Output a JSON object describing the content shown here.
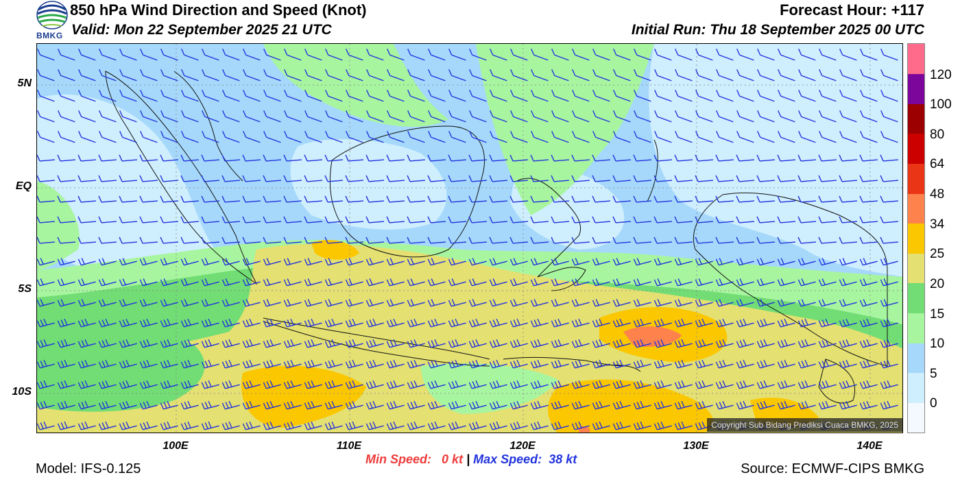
{
  "header": {
    "title": "850 hPa Wind Direction and Speed (Knot)",
    "valid": "Valid: Mon 22 September 2025 21 UTC",
    "forecast_hour": "Forecast Hour: +117",
    "initial_run": "Initial Run: Thu 18 September 2025 00 UTC"
  },
  "logo": {
    "text": "BMKG",
    "icon": "bmkg-logo-icon"
  },
  "axes": {
    "lat_labels": [
      "5N",
      "EQ",
      "5S",
      "10S"
    ],
    "lon_labels": [
      "100E",
      "110E",
      "120E",
      "130E",
      "140E"
    ]
  },
  "colorbar": {
    "labels": [
      "0",
      "5",
      "10",
      "15",
      "20",
      "25",
      "34",
      "48",
      "64",
      "80",
      "100",
      "120"
    ],
    "colors": [
      "#f4f9ff",
      "#cfeefe",
      "#a5d8fb",
      "#a8f5a0",
      "#71dd74",
      "#e4e072",
      "#fbc701",
      "#fd824c",
      "#ea3517",
      "#cd0000",
      "#9c0000",
      "#7c069c",
      "#fe6b8b"
    ]
  },
  "footer": {
    "model": "Model: IFS-0.125",
    "source": "Source: ECMWF-CIPS BMKG",
    "min_label": "Min Speed:",
    "min_value": "0 kt",
    "separator": "|",
    "max_label": "Max Speed:",
    "max_value": "38 kt",
    "copyright": "Copyright Sub Bidang Prediksi Cuaca BMKG, 2025"
  },
  "map_colors": {
    "ocean_light": "#cfeefe",
    "wind_blue": "#a5d8fb",
    "wind_green_light": "#a8f5a0",
    "wind_green": "#71dd74",
    "wind_yellow": "#e4e072",
    "wind_orange": "#fbc701",
    "wind_red": "#fd824c",
    "barb_color": "#2233dd"
  }
}
